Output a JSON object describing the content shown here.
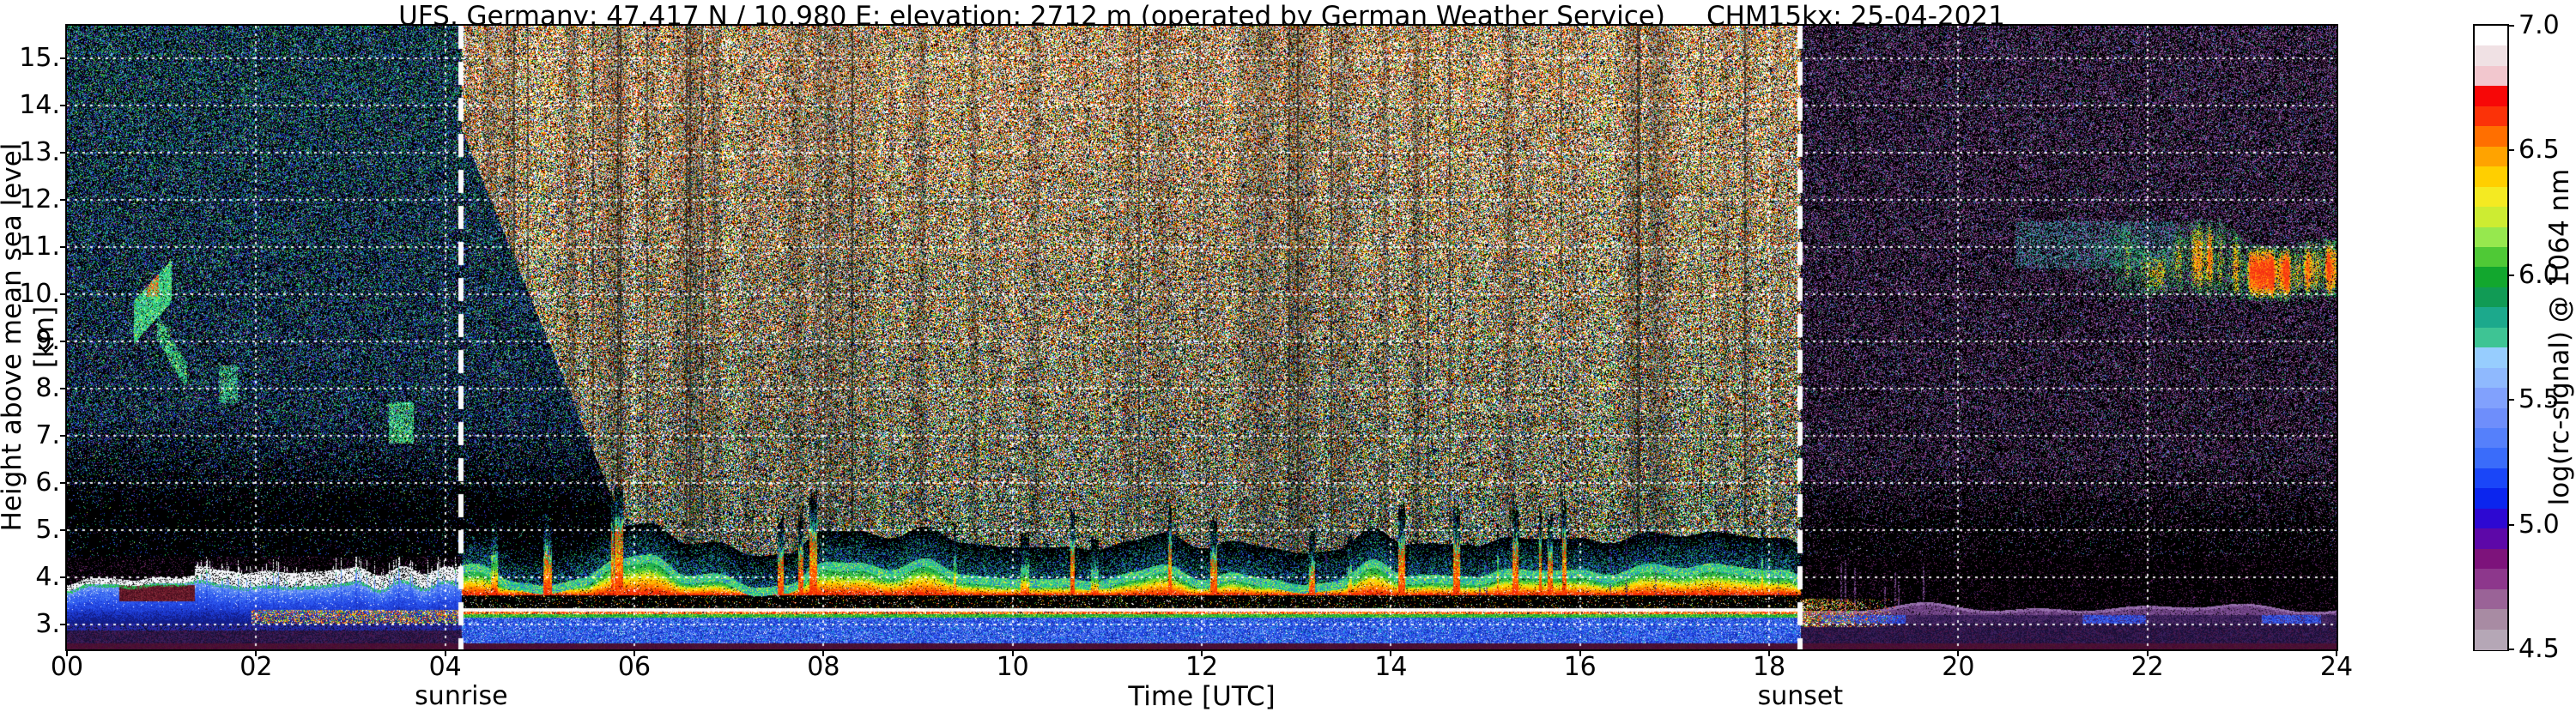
{
  "title": {
    "main": "UFS, Germany; 47.417 N / 10.980 E; elevation: 2712 m  (operated by German Weather Service)",
    "right": "CHM15kx: 25-04-2021"
  },
  "axes": {
    "x": {
      "label": "Time [UTC]",
      "range_hours": [
        0,
        24
      ],
      "tick_values": [
        0,
        2,
        4,
        6,
        8,
        10,
        12,
        14,
        16,
        18,
        20,
        22,
        24
      ],
      "tick_labels": [
        "00",
        "02",
        "04",
        "06",
        "08",
        "10",
        "12",
        "14",
        "16",
        "18",
        "20",
        "22",
        "24"
      ]
    },
    "y": {
      "label": "Height above mean sea level [km]",
      "range_km": [
        2.48,
        15.69
      ],
      "tick_values": [
        15,
        14,
        13,
        12,
        11,
        10,
        9,
        8,
        7,
        6,
        5,
        4,
        3
      ],
      "tick_labels": [
        "15.",
        "14.",
        "13.",
        "12.",
        "11.",
        "10.",
        "9.",
        "8.",
        "7.",
        "6.",
        "5.",
        "4.",
        "3."
      ]
    },
    "annotations": [
      {
        "label": "sunrise",
        "time_utc": 4.17
      },
      {
        "label": "sunset",
        "time_utc": 18.33
      }
    ]
  },
  "colorbar": {
    "label": "log(rc-signal) @ 1064 nm",
    "range": [
      4.5,
      7.0
    ],
    "tick_values": [
      7.0,
      6.5,
      6.0,
      5.5,
      5.0,
      4.5
    ],
    "tick_labels": [
      "7.0",
      "6.5",
      "6.0",
      "5.5",
      "5.0",
      "4.5"
    ],
    "colors_bottom_to_top": [
      "#b5a7b6",
      "#a88ba3",
      "#9a6397",
      "#8d378c",
      "#7d137b",
      "#5d08a8",
      "#2d08d2",
      "#0b25ee",
      "#1a46f8",
      "#3a6cfa",
      "#5580fb",
      "#6e8efb",
      "#81a1fd",
      "#8fb9fe",
      "#97cdfe",
      "#3ec494",
      "#1ca98c",
      "#119b55",
      "#12a72e",
      "#4fc936",
      "#96e84e",
      "#cdec32",
      "#f4ea22",
      "#ffcf00",
      "#ffa300",
      "#ff6f00",
      "#fb3208",
      "#f70707",
      "#f2c7ce",
      "#f0e1e4",
      "#ffffff"
    ]
  },
  "chart_data": {
    "type": "heatmap",
    "title": "UFS, Germany; 47.417 N / 10.980 E; elevation: 2712 m  (operated by German Weather Service)    CHM15kx: 25-04-2021",
    "xlabel": "Time [UTC]",
    "ylabel": "Height above mean sea level [km]",
    "colorbar_label": "log(rc-signal) @ 1064 nm",
    "x_range_hours": [
      0,
      24
    ],
    "y_range_km": [
      2.48,
      15.69
    ],
    "signal_log_range": [
      4.5,
      7.0
    ],
    "sunrise_utc": 4.17,
    "sunset_utc": 18.33,
    "grid": {
      "x_step_hours": 2,
      "y_step_km": 1,
      "style": "white dotted"
    },
    "sun_lines_style": "thick white dashed vertical",
    "regions": [
      {
        "name": "night-clear-air",
        "t": [
          0,
          4.17
        ],
        "h": [
          4.5,
          15.7
        ],
        "appearance": "sparse blue/green/purple noise on black, greener aloft"
      },
      {
        "name": "daylight-background-noise",
        "t": [
          4.17,
          18.33
        ],
        "h": [
          4.5,
          15.7
        ],
        "appearance": "dense white/red/orange/yellow salt-and-pepper solar noise, cooler green/blue and darker at lower heights"
      },
      {
        "name": "twilight-wedge",
        "t": [
          4.17,
          6.05
        ],
        "h_top_at_sunrise_km": 13.5,
        "slope_km_per_hour": -4.9,
        "appearance": "darker night-like noise wedge after sunrise"
      },
      {
        "name": "evening-clear-air",
        "t": [
          18.33,
          24
        ],
        "h": [
          4.3,
          15.7
        ],
        "appearance": "sparse purple speckle noise on black"
      }
    ],
    "features": [
      {
        "name": "nocturnal-cloud",
        "t": [
          0.7,
          1.1
        ],
        "h": [
          9.0,
          10.4
        ],
        "appearance": "green/cyan plume with small red-orange core near 10.1 km"
      },
      {
        "name": "cloud-tail",
        "t": [
          0.95,
          1.27
        ],
        "h": [
          8.2,
          9.35
        ],
        "appearance": "thin descending green streak"
      },
      {
        "name": "small-cloud-2am",
        "t": [
          1.6,
          1.8
        ],
        "h": [
          7.7,
          8.5
        ],
        "appearance": "faint green/blue patch"
      },
      {
        "name": "small-cloud-4am",
        "t": [
          3.4,
          3.66
        ],
        "h": [
          6.85,
          7.72
        ],
        "appearance": "green/cyan patch"
      },
      {
        "name": "night-boundary-layer",
        "t": [
          0,
          4.17
        ],
        "h": [
          3.0,
          4.2
        ],
        "appearance": "blue layer with spiky white crest and thin green top line"
      },
      {
        "name": "maroon-patch",
        "t": [
          0.55,
          1.35
        ],
        "h": [
          3.5,
          3.85
        ],
        "appearance": "dark maroon patch in crest"
      },
      {
        "name": "night-low-speckles",
        "t": [
          1.95,
          4.17
        ],
        "h": [
          3.02,
          3.32
        ],
        "appearance": "red/yellow/green/white speckles"
      },
      {
        "name": "day-aerosol-layer",
        "t": [
          4.17,
          18.33
        ],
        "h": [
          3.62,
          4.8
        ],
        "appearance": "rainbow band, red/orange bottom to green top, with tall red convective plumes"
      },
      {
        "name": "black-attenuation-band",
        "t": [
          4.17,
          18.33
        ],
        "h": [
          3.36,
          3.62
        ],
        "appearance": "black band under aerosol layer"
      },
      {
        "name": "white-surface-line",
        "t": [
          0,
          24
        ],
        "h": [
          3.28,
          3.36
        ],
        "appearance": "bright white line"
      },
      {
        "name": "surface-blue-band",
        "t": [
          0,
          24
        ],
        "h": [
          2.6,
          3.16
        ],
        "appearance": "blue band above dark maroon bottom strip"
      },
      {
        "name": "evening-low-remnants",
        "t": [
          18.33,
          19.4
        ],
        "h": [
          2.95,
          3.55
        ],
        "appearance": "fading colorful speckles"
      },
      {
        "name": "evening-boundary-hill",
        "t": [
          18.9,
          24
        ],
        "h": [
          3.2,
          3.9
        ],
        "appearance": "purple hilly boundary layer with blue pockets below"
      },
      {
        "name": "cirrus-haze",
        "t": [
          20.6,
          22.3
        ],
        "h": [
          10.55,
          11.55
        ],
        "appearance": "faint teal haze"
      },
      {
        "name": "evening-cirrus",
        "t": [
          21.35,
          24
        ],
        "h": [
          9.6,
          11.7
        ],
        "appearance": "striated green/yellow/orange/red cirrus streaks, densest 22.8-24"
      }
    ]
  }
}
